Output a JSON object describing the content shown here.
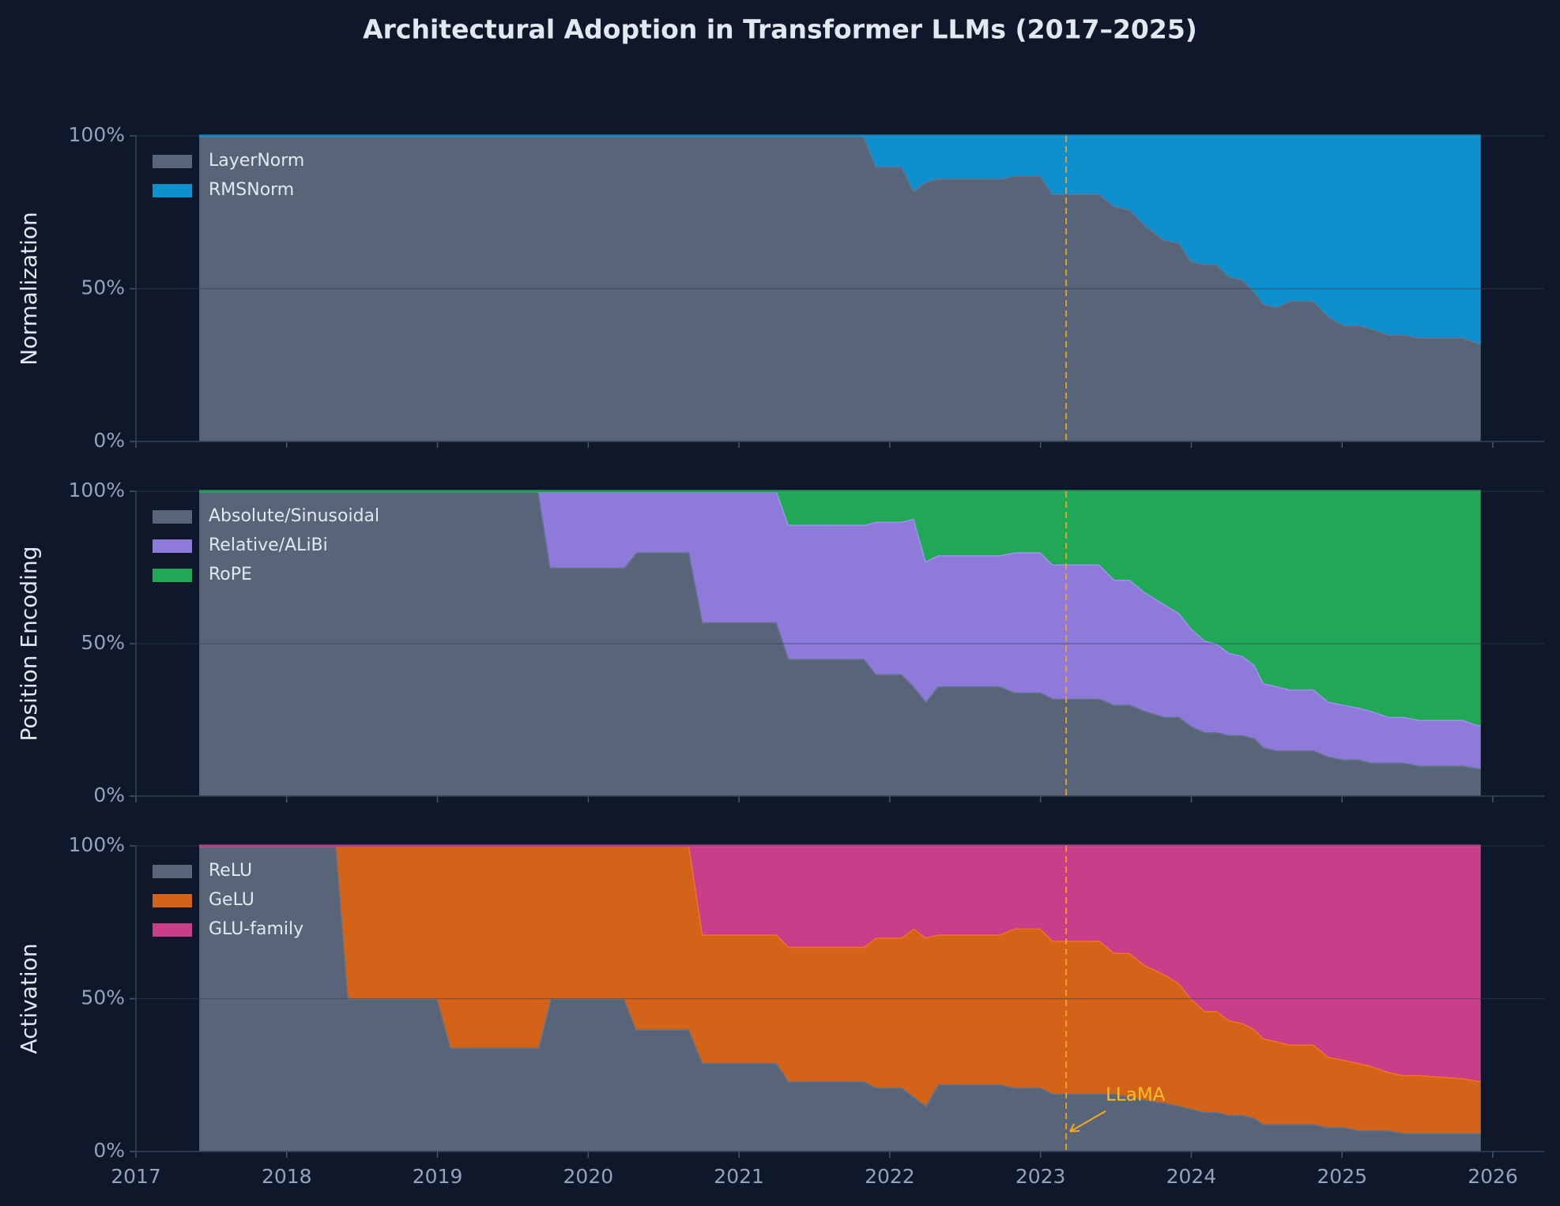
{
  "title": "Architectural Adoption in Transformer LLMs (2017–2025)",
  "event": {
    "label": "LLaMA",
    "x": 2023.17
  },
  "chart_data": [
    {
      "type": "area",
      "ylabel": "Normalization",
      "x": [
        2017.42,
        2018.33,
        2018.41,
        2019.0,
        2019.09,
        2019.67,
        2019.75,
        2020.24,
        2020.32,
        2020.67,
        2020.76,
        2021.25,
        2021.33,
        2021.83,
        2021.91,
        2022.08,
        2022.16,
        2022.24,
        2022.32,
        2022.73,
        2022.83,
        2023.0,
        2023.08,
        2023.39,
        2023.49,
        2023.59,
        2023.69,
        2023.82,
        2023.92,
        2024.0,
        2024.09,
        2024.17,
        2024.25,
        2024.34,
        2024.42,
        2024.48,
        2024.57,
        2024.65,
        2024.81,
        2024.91,
        2025.01,
        2025.11,
        2025.19,
        2025.31,
        2025.41,
        2025.51,
        2025.8,
        2025.92
      ],
      "series": [
        {
          "name": "LayerNorm",
          "color": "#586579",
          "values": [
            100,
            100,
            100,
            100,
            100,
            100,
            100,
            100,
            100,
            100,
            100,
            100,
            100,
            100,
            90,
            90,
            82,
            85,
            86,
            86,
            87,
            87,
            81,
            81,
            77,
            76,
            71,
            66,
            65,
            59,
            58,
            58,
            54,
            53,
            49,
            45,
            44,
            46,
            46,
            41,
            38,
            38,
            37,
            35,
            35,
            34,
            34,
            32
          ]
        },
        {
          "name": "RMSNorm",
          "color": "#0e8fce",
          "values": [
            0,
            0,
            0,
            0,
            0,
            0,
            0,
            0,
            0,
            0,
            0,
            0,
            0,
            0,
            10,
            10,
            18,
            15,
            14,
            14,
            13,
            13,
            19,
            19,
            23,
            24,
            29,
            34,
            35,
            41,
            42,
            42,
            46,
            47,
            51,
            55,
            56,
            54,
            54,
            59,
            62,
            62,
            63,
            65,
            65,
            66,
            66,
            68
          ]
        }
      ],
      "xlim": [
        2017,
        2026
      ],
      "xticks": [
        2017,
        2018,
        2019,
        2020,
        2021,
        2022,
        2023,
        2024,
        2025,
        2026
      ],
      "ylim": [
        0,
        100
      ],
      "yticks": [
        {
          "value": 0,
          "label": "0%"
        },
        {
          "value": 50,
          "label": "50%"
        },
        {
          "value": 100,
          "label": "100%"
        }
      ],
      "grid": true,
      "legend": "upper left"
    },
    {
      "type": "area",
      "ylabel": "Position Encoding",
      "x": [
        2017.42,
        2018.33,
        2018.41,
        2019.0,
        2019.09,
        2019.67,
        2019.75,
        2020.24,
        2020.32,
        2020.67,
        2020.76,
        2021.25,
        2021.33,
        2021.83,
        2021.91,
        2022.08,
        2022.16,
        2022.24,
        2022.32,
        2022.73,
        2022.83,
        2023.0,
        2023.08,
        2023.39,
        2023.49,
        2023.59,
        2023.69,
        2023.82,
        2023.92,
        2024.0,
        2024.09,
        2024.17,
        2024.25,
        2024.34,
        2024.42,
        2024.48,
        2024.57,
        2024.65,
        2024.81,
        2024.91,
        2025.01,
        2025.11,
        2025.19,
        2025.31,
        2025.41,
        2025.51,
        2025.8,
        2025.92
      ],
      "series": [
        {
          "name": "Absolute/Sinusoidal",
          "color": "#586579",
          "values": [
            100,
            100,
            100,
            100,
            100,
            100,
            75,
            75,
            80,
            80,
            57,
            57,
            45,
            45,
            40,
            40,
            36,
            31,
            36,
            36,
            34,
            34,
            32,
            32,
            30,
            30,
            28,
            26,
            26,
            23,
            21,
            21,
            20,
            20,
            19,
            16,
            15,
            15,
            15,
            13,
            12,
            12,
            11,
            11,
            11,
            10,
            10,
            9
          ]
        },
        {
          "name": "Relative/ALiBi",
          "color": "#8e7ad9",
          "values": [
            0,
            0,
            0,
            0,
            0,
            0,
            25,
            25,
            20,
            20,
            43,
            43,
            44,
            44,
            50,
            50,
            55,
            46,
            43,
            43,
            46,
            46,
            44,
            44,
            41,
            41,
            39,
            37,
            34,
            32,
            30,
            29,
            27,
            26,
            24,
            21,
            21,
            20,
            20,
            18,
            18,
            17,
            17,
            15,
            15,
            15,
            15,
            14
          ]
        },
        {
          "name": "RoPE",
          "color": "#21a856",
          "values": [
            0,
            0,
            0,
            0,
            0,
            0,
            0,
            0,
            0,
            0,
            0,
            0,
            11,
            11,
            10,
            10,
            9,
            23,
            21,
            21,
            20,
            20,
            24,
            24,
            29,
            29,
            33,
            37,
            40,
            45,
            49,
            50,
            53,
            54,
            57,
            63,
            64,
            65,
            65,
            69,
            70,
            71,
            72,
            74,
            74,
            75,
            75,
            77
          ]
        }
      ],
      "xlim": [
        2017,
        2026
      ],
      "xticks": [
        2017,
        2018,
        2019,
        2020,
        2021,
        2022,
        2023,
        2024,
        2025,
        2026
      ],
      "ylim": [
        0,
        100
      ],
      "yticks": [
        {
          "value": 0,
          "label": "0%"
        },
        {
          "value": 50,
          "label": "50%"
        },
        {
          "value": 100,
          "label": "100%"
        }
      ],
      "grid": true,
      "legend": "upper left"
    },
    {
      "type": "area",
      "ylabel": "Activation",
      "x": [
        2017.42,
        2018.33,
        2018.41,
        2019.0,
        2019.09,
        2019.67,
        2019.75,
        2020.24,
        2020.32,
        2020.67,
        2020.76,
        2021.25,
        2021.33,
        2021.83,
        2021.91,
        2022.08,
        2022.16,
        2022.24,
        2022.32,
        2022.73,
        2022.83,
        2023.0,
        2023.08,
        2023.39,
        2023.49,
        2023.59,
        2023.69,
        2023.82,
        2023.92,
        2024.0,
        2024.09,
        2024.17,
        2024.25,
        2024.34,
        2024.42,
        2024.48,
        2024.57,
        2024.65,
        2024.81,
        2024.91,
        2025.01,
        2025.11,
        2025.19,
        2025.31,
        2025.41,
        2025.51,
        2025.8,
        2025.92
      ],
      "series": [
        {
          "name": "ReLU",
          "color": "#586579",
          "values": [
            100,
            100,
            50,
            50,
            34,
            34,
            50,
            50,
            40,
            40,
            29,
            29,
            23,
            23,
            21,
            21,
            18,
            15,
            22,
            22,
            21,
            21,
            19,
            19,
            19,
            18,
            17,
            16,
            15,
            14,
            13,
            13,
            12,
            12,
            11,
            9,
            9,
            9,
            9,
            8,
            8,
            7,
            7,
            7,
            6,
            6,
            6,
            6
          ]
        },
        {
          "name": "GeLU",
          "color": "#d4631a",
          "values": [
            0,
            0,
            50,
            50,
            66,
            66,
            50,
            50,
            60,
            60,
            42,
            42,
            44,
            44,
            49,
            49,
            55,
            55,
            49,
            49,
            52,
            52,
            50,
            50,
            46,
            47,
            44,
            42,
            40,
            36,
            33,
            33,
            31,
            30,
            29,
            28,
            27,
            26,
            26,
            23,
            22,
            22,
            21,
            19,
            19,
            19,
            18,
            17
          ]
        },
        {
          "name": "GLU-family",
          "color": "#c83e88",
          "values": [
            0,
            0,
            0,
            0,
            0,
            0,
            0,
            0,
            0,
            0,
            29,
            29,
            33,
            33,
            30,
            30,
            27,
            30,
            29,
            29,
            27,
            27,
            31,
            31,
            35,
            35,
            39,
            42,
            45,
            50,
            54,
            54,
            57,
            58,
            60,
            63,
            64,
            65,
            65,
            69,
            70,
            71,
            72,
            74,
            75,
            75,
            76,
            77
          ]
        }
      ],
      "xlim": [
        2017,
        2026
      ],
      "xticks": [
        2017,
        2018,
        2019,
        2020,
        2021,
        2022,
        2023,
        2024,
        2025,
        2026
      ],
      "ylim": [
        0,
        100
      ],
      "yticks": [
        {
          "value": 0,
          "label": "0%"
        },
        {
          "value": 50,
          "label": "50%"
        },
        {
          "value": 100,
          "label": "100%"
        }
      ],
      "grid": true,
      "legend": "upper left"
    }
  ]
}
